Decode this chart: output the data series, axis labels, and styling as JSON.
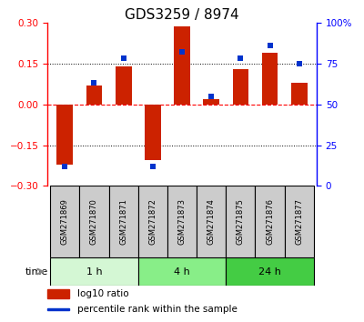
{
  "title": "GDS3259 / 8974",
  "samples": [
    "GSM271869",
    "GSM271870",
    "GSM271871",
    "GSM271872",
    "GSM271873",
    "GSM271874",
    "GSM271875",
    "GSM271876",
    "GSM271877"
  ],
  "log10_ratio": [
    -0.22,
    0.07,
    0.14,
    -0.205,
    0.285,
    0.02,
    0.13,
    0.19,
    0.08
  ],
  "percentile_rank": [
    12,
    63,
    78,
    12,
    82,
    55,
    78,
    86,
    75
  ],
  "ylim_left": [
    -0.3,
    0.3
  ],
  "ylim_right": [
    0,
    100
  ],
  "yticks_left": [
    -0.3,
    -0.15,
    0,
    0.15,
    0.3
  ],
  "yticks_right": [
    0,
    25,
    50,
    75,
    100
  ],
  "hlines_dotted": [
    -0.15,
    0.15
  ],
  "hline_dashed": 0,
  "bar_color": "#cc2200",
  "dot_color": "#0033cc",
  "groups": [
    {
      "label": "1 h",
      "start": 0,
      "end": 3,
      "color": "#d4f7d4"
    },
    {
      "label": "4 h",
      "start": 3,
      "end": 6,
      "color": "#88ee88"
    },
    {
      "label": "24 h",
      "start": 6,
      "end": 9,
      "color": "#44cc44"
    }
  ],
  "time_label": "time",
  "legend_bar_label": "log10 ratio",
  "legend_dot_label": "percentile rank within the sample",
  "title_fontsize": 11,
  "tick_fontsize": 7.5,
  "label_fontsize": 6,
  "bar_width": 0.55
}
